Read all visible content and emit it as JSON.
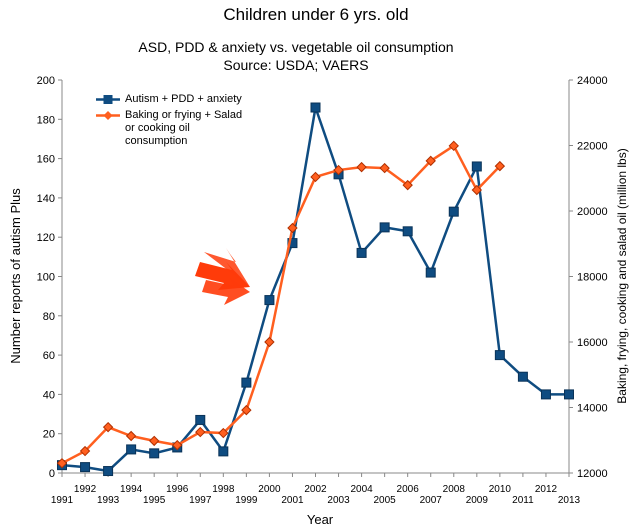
{
  "chart_data": {
    "type": "line",
    "title": "Children under 6 yrs. old",
    "subtitle": [
      "ASD, PDD & anxiety vs. vegetable oil consumption",
      "Source: USDA; VAERS"
    ],
    "xlabel": "Year",
    "ylabel": "Number reports of autism Plus",
    "y2label": "Baking, frying, cooking and salad oil (million lbs)",
    "x": [
      1991,
      1992,
      1993,
      1994,
      1995,
      1996,
      1997,
      1998,
      1999,
      2000,
      2001,
      2002,
      2003,
      2004,
      2005,
      2006,
      2007,
      2008,
      2009,
      2010,
      2011,
      2012,
      2013
    ],
    "xlim": [
      1991,
      2013
    ],
    "xticks": [
      1991,
      1992,
      1993,
      1994,
      1995,
      1996,
      1997,
      1998,
      1999,
      2000,
      2001,
      2002,
      2003,
      2004,
      2005,
      2006,
      2007,
      2008,
      2009,
      2010,
      2011,
      2012,
      2013
    ],
    "ylim": [
      0,
      200
    ],
    "yticks": [
      0,
      20,
      40,
      60,
      80,
      100,
      120,
      140,
      160,
      180,
      200
    ],
    "y2lim": [
      12000,
      24000
    ],
    "y2ticks": [
      12000,
      14000,
      16000,
      18000,
      20000,
      22000,
      24000
    ],
    "legend": "upper left",
    "series": [
      {
        "name": "Autism + PDD + anxiety",
        "color": "#0f4c81",
        "marker": "square",
        "values": [
          4,
          3,
          1,
          12,
          10,
          13,
          27,
          11,
          46,
          88,
          117,
          186,
          152,
          112,
          125,
          123,
          102,
          133,
          156,
          60,
          49,
          40,
          40
        ]
      },
      {
        "name": "Baking or frying + Salad or cooking oil consumption",
        "color": "#ff5f1f",
        "marker": "diamond",
        "axis": "y2",
        "values": [
          12300,
          12670,
          13400,
          13130,
          12980,
          12850,
          13250,
          13220,
          13920,
          16000,
          19480,
          21040,
          21250,
          21340,
          21310,
          20790,
          21530,
          21990,
          20640,
          21370,
          null,
          null,
          null
        ]
      }
    ]
  }
}
